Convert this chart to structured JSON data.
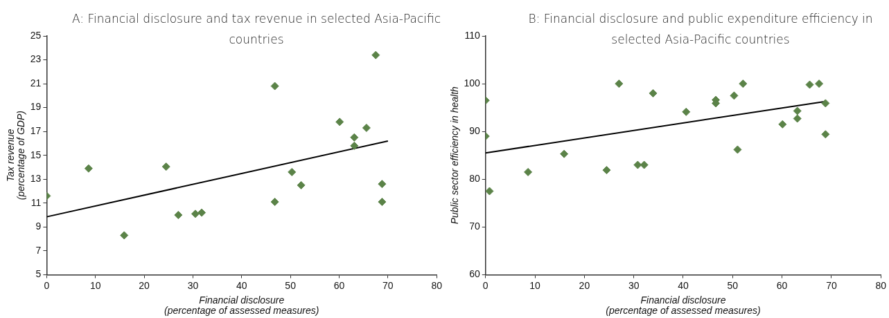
{
  "chart_data": [
    {
      "type": "scatter",
      "title": "A: Financial disclosure and tax revenue in selected Asia-Pacific countries",
      "xlabel": "Financial disclosure\n(percentage of assessed measures)",
      "ylabel": "Tax revenue\n(percentage of GDP)",
      "xlim": [
        0,
        80
      ],
      "xticks": [
        0,
        10,
        20,
        30,
        40,
        50,
        60,
        70,
        80
      ],
      "ylim": [
        5,
        25
      ],
      "yticks": [
        5,
        7,
        9,
        11,
        13,
        15,
        17,
        19,
        21,
        23,
        25
      ],
      "grid": false,
      "legend": false,
      "marker": "diamond",
      "series": [
        {
          "type": "scatter",
          "color": "#5b8348",
          "x": [
            0,
            8.6,
            15.9,
            24.5,
            27,
            30.5,
            31.8,
            46.8,
            46.8,
            50.3,
            52.2,
            60.1,
            63.1,
            63.1,
            65.6,
            67.5,
            68.8,
            68.8
          ],
          "values": [
            11.6,
            13.9,
            8.3,
            14.05,
            10.0,
            10.1,
            10.2,
            20.8,
            11.1,
            13.6,
            12.5,
            17.8,
            16.5,
            15.8,
            17.3,
            23.4,
            12.6,
            11.1
          ]
        },
        {
          "type": "line",
          "color": "#000000",
          "marker": "none",
          "x": [
            0,
            70
          ],
          "values": [
            9.85,
            16.2
          ]
        }
      ]
    },
    {
      "type": "scatter",
      "title": "B: Financial disclosure and public expenditure efficiency in selected Asia-Pacific countries",
      "xlabel": "Financial disclosure\n(percentage of assessed measures)",
      "ylabel": "Public sector efficiency in health",
      "xlim": [
        0,
        80
      ],
      "xticks": [
        0,
        10,
        20,
        30,
        40,
        50,
        60,
        70,
        80
      ],
      "ylim": [
        60,
        110
      ],
      "yticks": [
        60,
        70,
        80,
        90,
        100,
        110
      ],
      "grid": false,
      "legend": false,
      "marker": "diamond",
      "series": [
        {
          "type": "scatter",
          "color": "#5b8348",
          "x": [
            0,
            0,
            0.8,
            8.6,
            15.9,
            24.5,
            27,
            30.8,
            32.1,
            33.9,
            40.6,
            46.6,
            46.6,
            50.3,
            51,
            52.1,
            60.1,
            63.1,
            63.1,
            65.6,
            67.5,
            68.8,
            68.8
          ],
          "values": [
            96.5,
            89,
            77.5,
            81.5,
            85.3,
            81.9,
            100,
            83,
            83,
            98,
            94.1,
            96.6,
            95.9,
            97.5,
            86.2,
            100,
            91.5,
            94.3,
            92.7,
            99.8,
            100,
            95.9,
            89.4
          ]
        },
        {
          "type": "line",
          "color": "#000000",
          "marker": "none",
          "x": [
            0,
            68.8
          ],
          "values": [
            85.5,
            96.3
          ]
        }
      ]
    }
  ]
}
